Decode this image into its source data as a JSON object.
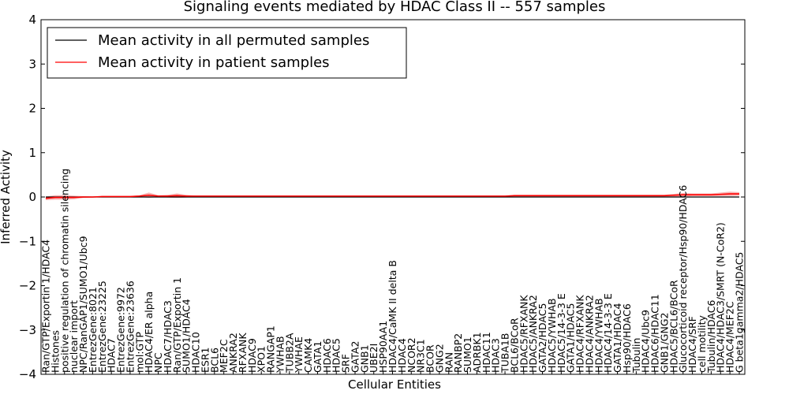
{
  "chart_data": {
    "type": "line",
    "title": "Signaling events mediated by HDAC Class II -- 557 samples",
    "xlabel": "Cellular Entities",
    "ylabel": "Inferred Activity",
    "ylim": [
      -4,
      4
    ],
    "yticks": [
      "-4",
      "-3",
      "-2",
      "-1",
      "0",
      "1",
      "2",
      "3",
      "4"
    ],
    "legend": {
      "placement": "top-left",
      "entries": [
        "Mean activity in all permuted samples",
        "Mean activity in patient samples"
      ]
    },
    "colors": {
      "permuted": "#000000",
      "patient": "#ff0000",
      "band": "#f08080",
      "perm_band": "#bbbbbb"
    },
    "categories": [
      "Ran/GTP/Exportin 1/HDAC4",
      "Histones",
      "positive regulation of chromatin silencing",
      "nuclear import",
      "NPC/RanGAP1/SUMO1/Ubc9",
      "EntrezGene:8021",
      "EntrezGene:23225",
      "HDAC7",
      "EntrezGene:9972",
      "EntrezGene:23636",
      "mol:GTP",
      "HDAC4/ER alpha",
      "NPC",
      "HDAC7/HDAC3",
      "Ran/GTP/Exportin 1",
      "SUMO1/HDAC4",
      "HDAC10",
      "ESR1",
      "BCL6",
      "MEF2C",
      "ANKRA2",
      "RFXANK",
      "HDAC9",
      "XPO1",
      "RANGAP1",
      "YWHAB",
      "TUBB2A",
      "YWHAE",
      "CAMK4",
      "GATA1",
      "HDAC6",
      "HDAC5",
      "SRF",
      "GATA2",
      "GNB1",
      "UBE2I",
      "HSP90AA1",
      "HDAC4/CaMK II delta B",
      "HDAC4",
      "NCOR2",
      "NR3C1",
      "BCOR",
      "GNG2",
      "RAN",
      "RANBP2",
      "SUMO1",
      "ADRBK1",
      "HDAC11",
      "HDAC3",
      "TUBA1B",
      "BCL6/BCoR",
      "HDAC5/RFXANK",
      "HDAC5/ANKRA2",
      "GATA2/HDAC5",
      "HDAC5/YWHAB",
      "HDAC5/14-3-3 E",
      "GATA1/HDAC5",
      "HDAC4/RFXANK",
      "HDAC4/ANKRA2",
      "HDAC4/YWHAB",
      "HDAC4/14-3-3 E",
      "GATA1/HDAC4",
      "Hsp90/HDAC6",
      "Tubulin",
      "HDAC4/Ubc9",
      "HDAC6/HDAC11",
      "GNB1/GNG2",
      "HDAC5/BCL6/BCoR",
      "Glucocorticoid receptor/Hsp90/HDAC6",
      "HDAC4/SRF",
      "cell motility",
      "Tubulin/HDAC6",
      "HDAC4/HDAC3/SMRT (N-CoR2)",
      "HDAC4/MEF2C",
      "G beta1gamma2/HDAC5"
    ],
    "series": [
      {
        "name": "Mean activity in all permuted samples",
        "values": [
          0,
          0,
          0,
          0,
          0,
          0,
          0,
          0,
          0,
          0,
          0,
          0,
          0,
          0,
          0,
          0,
          0,
          0,
          0,
          0,
          0,
          0,
          0,
          0,
          0,
          0,
          0,
          0,
          0,
          0,
          0,
          0,
          0,
          0,
          0,
          0,
          0,
          0,
          0,
          0,
          0,
          0,
          0,
          0,
          0,
          0,
          0,
          0,
          0,
          0,
          0,
          0,
          0,
          0,
          0,
          0,
          0,
          0,
          0,
          0,
          0,
          0,
          0,
          0,
          0,
          0,
          0,
          0,
          0,
          0,
          0,
          0,
          0,
          0,
          0
        ],
        "spread": 0.01
      },
      {
        "name": "Mean activity in patient samples",
        "values": [
          -0.03,
          -0.01,
          -0.01,
          -0.01,
          0,
          0,
          0.01,
          0.01,
          0.01,
          0.01,
          0.02,
          0.04,
          0.02,
          0.02,
          0.03,
          0.02,
          0.02,
          0.02,
          0.02,
          0.02,
          0.02,
          0.02,
          0.02,
          0.02,
          0.02,
          0.02,
          0.02,
          0.02,
          0.02,
          0.02,
          0.02,
          0.02,
          0.02,
          0.02,
          0.02,
          0.02,
          0.02,
          0.02,
          0.02,
          0.02,
          0.02,
          0.02,
          0.02,
          0.02,
          0.02,
          0.02,
          0.02,
          0.02,
          0.02,
          0.02,
          0.03,
          0.03,
          0.03,
          0.03,
          0.03,
          0.03,
          0.03,
          0.03,
          0.03,
          0.03,
          0.03,
          0.03,
          0.03,
          0.03,
          0.03,
          0.03,
          0.03,
          0.04,
          0.05,
          0.05,
          0.05,
          0.05,
          0.06,
          0.07,
          0.07
        ],
        "spread": [
          0.04,
          0.05,
          0.05,
          0.04,
          0.02,
          0.01,
          0.01,
          0.01,
          0.01,
          0.01,
          0.02,
          0.06,
          0.02,
          0.03,
          0.05,
          0.03,
          0.01,
          0.01,
          0.01,
          0.01,
          0.01,
          0.01,
          0.01,
          0.01,
          0.01,
          0.01,
          0.01,
          0.01,
          0.01,
          0.01,
          0.01,
          0.01,
          0.01,
          0.01,
          0.01,
          0.01,
          0.01,
          0.01,
          0.01,
          0.01,
          0.01,
          0.01,
          0.01,
          0.01,
          0.01,
          0.01,
          0.01,
          0.01,
          0.01,
          0.01,
          0.02,
          0.02,
          0.02,
          0.02,
          0.02,
          0.02,
          0.02,
          0.02,
          0.02,
          0.02,
          0.02,
          0.02,
          0.02,
          0.02,
          0.02,
          0.02,
          0.02,
          0.03,
          0.04,
          0.03,
          0.03,
          0.03,
          0.04,
          0.05,
          0.04
        ]
      }
    ]
  }
}
